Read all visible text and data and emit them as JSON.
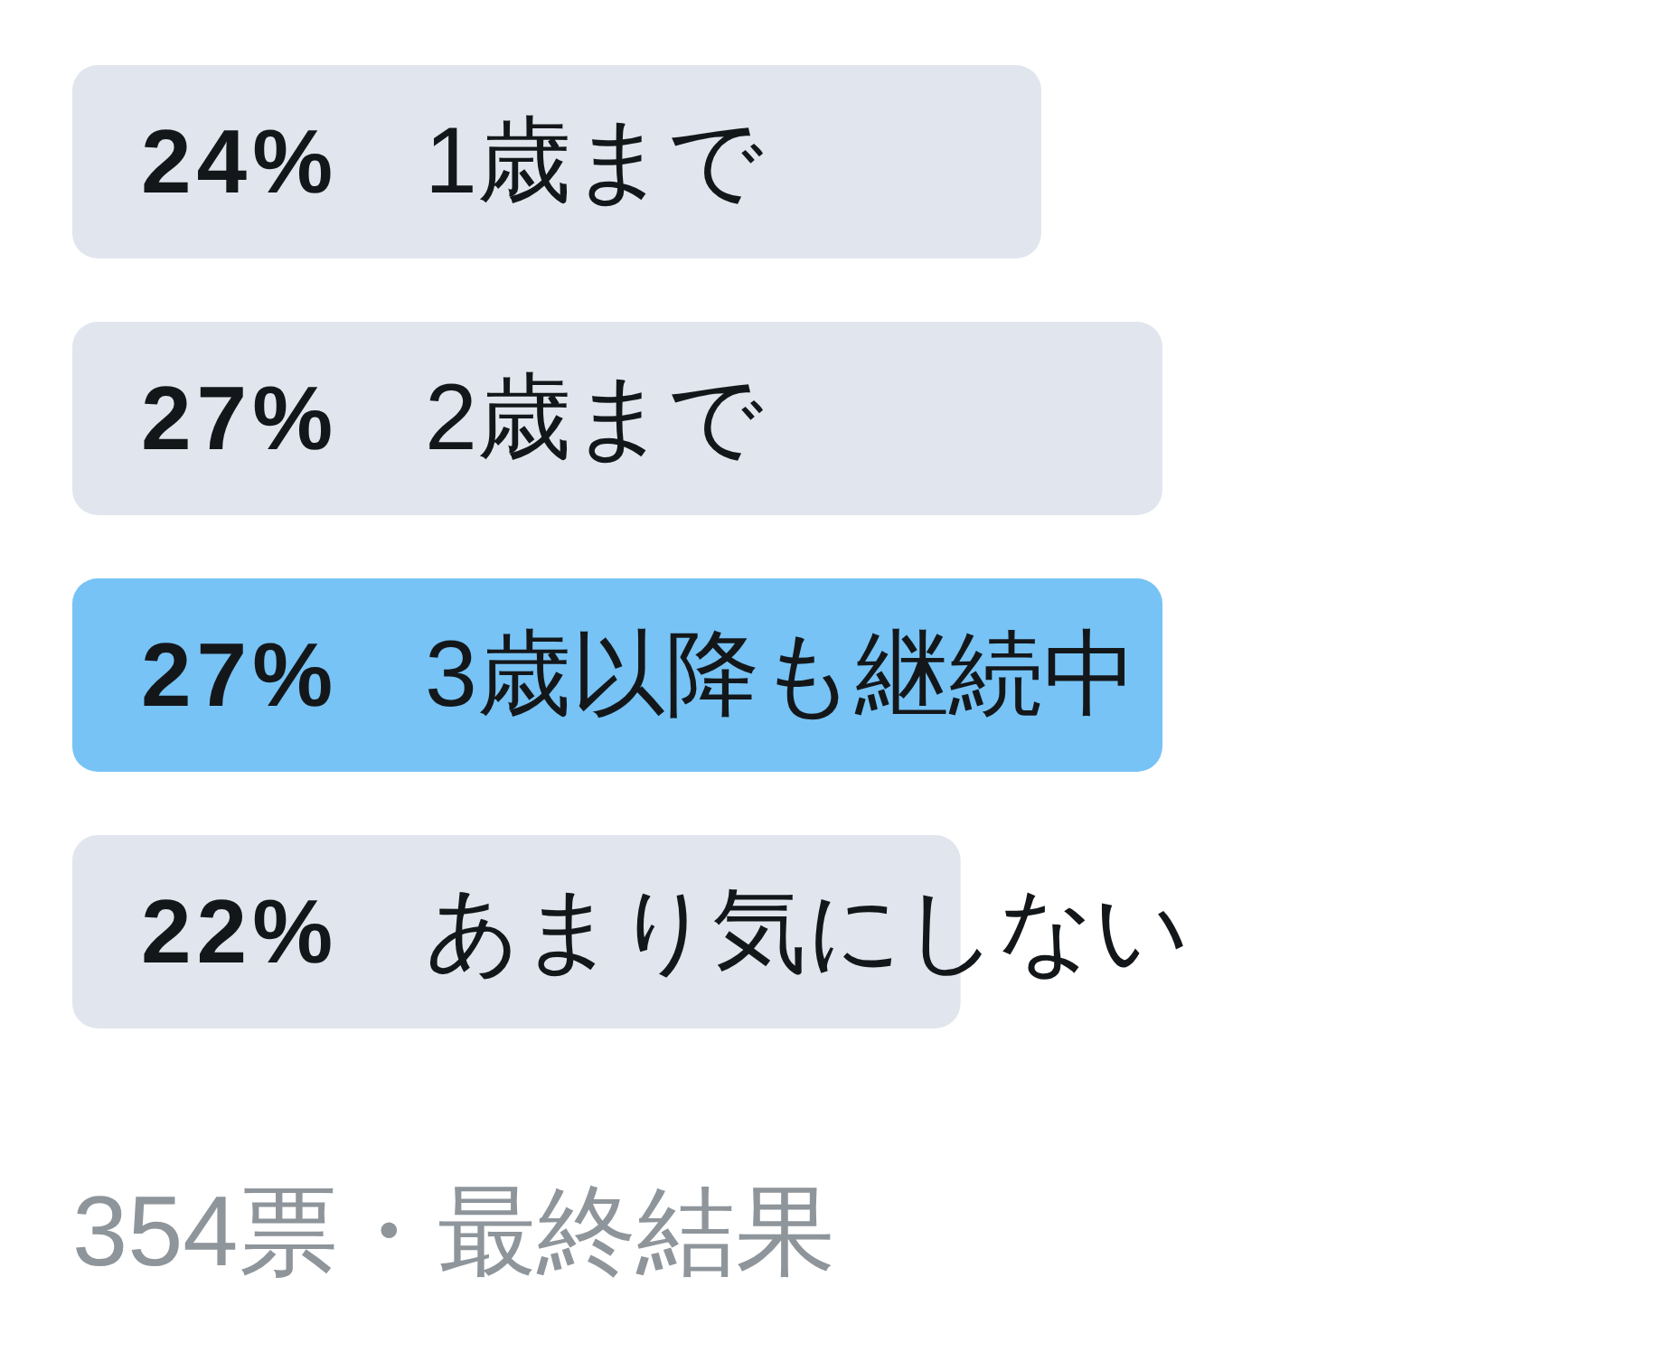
{
  "chart_data": {
    "type": "bar",
    "orientation": "horizontal",
    "categories": [
      "1歳まで",
      "2歳まで",
      "3歳以降も継続中",
      "あまり気にしない"
    ],
    "values": [
      24,
      27,
      27,
      22
    ],
    "value_labels": [
      "24%",
      "27%",
      "27%",
      "22%"
    ],
    "colors": [
      "#e1e6ee",
      "#e1e6ee",
      "#77c3f5",
      "#e1e6ee"
    ],
    "annotations": [
      "354票・最終結果"
    ]
  }
}
